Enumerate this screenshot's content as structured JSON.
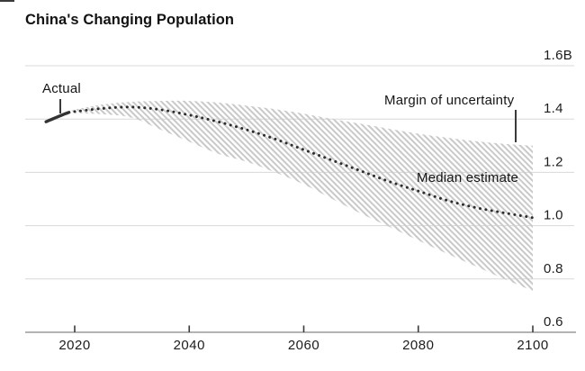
{
  "title": "China's Changing Population",
  "annotations": {
    "actual_label": "Actual",
    "margin_label": "Margin of uncertainty",
    "median_label": "Median estimate"
  },
  "chart_data": {
    "type": "line",
    "title": "China's Changing Population",
    "unit": "billions of people (B)",
    "ylim": [
      0.6,
      1.6
    ],
    "grid": true,
    "legend_position": "inline-annotations",
    "y_ticks": [
      {
        "value": 1.6,
        "label": "1.6B"
      },
      {
        "value": 1.4,
        "label": "1.4"
      },
      {
        "value": 1.2,
        "label": "1.2"
      },
      {
        "value": 1.0,
        "label": "1.0"
      },
      {
        "value": 0.8,
        "label": "0.8"
      },
      {
        "value": 0.6,
        "label": "0.6"
      }
    ],
    "x_ticks": [
      {
        "value": 2020,
        "label": "2020"
      },
      {
        "value": 2040,
        "label": "2040"
      },
      {
        "value": 2060,
        "label": "2060"
      },
      {
        "value": 2080,
        "label": "2080"
      },
      {
        "value": 2100,
        "label": "2100"
      }
    ],
    "series": [
      {
        "name": "Actual",
        "style": "solid",
        "x": [
          2015,
          2016,
          2017,
          2018,
          2019
        ],
        "values": [
          1.39,
          1.399,
          1.408,
          1.417,
          1.425
        ]
      },
      {
        "name": "Median estimate",
        "style": "dotted",
        "x": [
          2020,
          2025,
          2030,
          2035,
          2040,
          2045,
          2050,
          2055,
          2060,
          2065,
          2070,
          2075,
          2080,
          2085,
          2090,
          2095,
          2100
        ],
        "values": [
          1.428,
          1.44,
          1.445,
          1.435,
          1.415,
          1.39,
          1.36,
          1.325,
          1.285,
          1.245,
          1.205,
          1.165,
          1.13,
          1.095,
          1.068,
          1.048,
          1.03
        ]
      }
    ],
    "band": {
      "name": "Margin of uncertainty",
      "x": [
        2019,
        2020,
        2025,
        2030,
        2035,
        2040,
        2045,
        2050,
        2055,
        2060,
        2065,
        2070,
        2075,
        2080,
        2085,
        2090,
        2095,
        2100
      ],
      "upper": [
        1.425,
        1.435,
        1.455,
        1.465,
        1.468,
        1.468,
        1.462,
        1.45,
        1.437,
        1.42,
        1.4,
        1.382,
        1.363,
        1.345,
        1.33,
        1.317,
        1.307,
        1.3
      ],
      "lower": [
        1.425,
        1.422,
        1.418,
        1.405,
        1.36,
        1.315,
        1.27,
        1.24,
        1.2,
        1.155,
        1.1,
        1.045,
        0.995,
        0.945,
        0.895,
        0.848,
        0.8,
        0.755
      ]
    },
    "colors": {
      "line": "#333333",
      "dots": "#2d2d2d",
      "band_hatch": "#c9c9c9",
      "gridline": "#d8d8d8",
      "axis": "#9a9a9a",
      "tick": "#3a3a3a",
      "label": "#1c1c1c"
    }
  }
}
